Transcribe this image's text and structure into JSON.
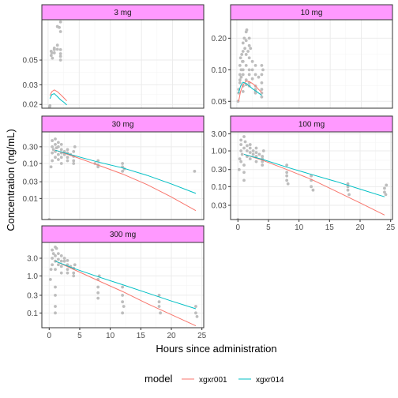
{
  "chart_data": {
    "type": "scatter",
    "x_label": "Hours since administration",
    "y_label": "Concentration (ng/mL)",
    "y_scale": "log",
    "legend": {
      "title": "model",
      "position": "bottom",
      "entries": [
        {
          "name": "xgxr001",
          "color": "#F8766D"
        },
        {
          "name": "xgxr014",
          "color": "#00BFC4"
        }
      ]
    },
    "colors": {
      "strip_fill": "#FF99FF",
      "points": "#bdbdbd",
      "grid_major": "#ebebeb",
      "grid_minor": "#f5f5f5",
      "panel_border": "#333333"
    },
    "panels": [
      {
        "title": "3 mg",
        "xlim": [
          -1,
          25
        ],
        "ylim": [
          0.0185,
          0.115
        ],
        "x_ticks": [],
        "y_ticks": [
          0.02,
          0.03,
          0.05
        ],
        "y_tick_labels": [
          "0.02",
          "0.03",
          "0.05"
        ],
        "points": [
          [
            0.25,
            0.019
          ],
          [
            0.3,
            0.0195
          ],
          [
            0.5,
            0.055
          ],
          [
            0.5,
            0.06
          ],
          [
            0.6,
            0.058
          ],
          [
            0.7,
            0.052
          ],
          [
            1,
            0.062
          ],
          [
            1,
            0.058
          ],
          [
            1,
            0.063
          ],
          [
            1.5,
            0.0625
          ],
          [
            2,
            0.062
          ],
          [
            2,
            0.057
          ],
          [
            2,
            0.054
          ],
          [
            2,
            0.05
          ],
          [
            1.5,
            0.068
          ],
          [
            2,
            0.09
          ],
          [
            1.8,
            0.098
          ],
          [
            2,
            0.11
          ],
          [
            1.5,
            0.1
          ],
          [
            1,
            0.064
          ]
        ],
        "series": [
          {
            "name": "xgxr001",
            "x": [
              0.3,
              0.6,
              1,
              1.5,
              2,
              2.5,
              3
            ],
            "y": [
              0.024,
              0.026,
              0.027,
              0.026,
              0.0245,
              0.023,
              0.0215
            ]
          },
          {
            "name": "xgxr014",
            "x": [
              0.3,
              0.6,
              1,
              1.5,
              2,
              2.5,
              3
            ],
            "y": [
              0.0225,
              0.0245,
              0.025,
              0.0235,
              0.022,
              0.021,
              0.0198
            ]
          }
        ]
      },
      {
        "title": "10 mg",
        "xlim": [
          -1,
          25
        ],
        "ylim": [
          0.043,
          0.3
        ],
        "x_ticks": [],
        "y_ticks": [
          0.05,
          0.1,
          0.2
        ],
        "y_tick_labels": [
          "0.05",
          "0.10",
          "0.20"
        ],
        "points": [
          [
            0.2,
            0.05
          ],
          [
            0.3,
            0.065
          ],
          [
            0.3,
            0.06
          ],
          [
            0.5,
            0.075
          ],
          [
            0.5,
            0.08
          ],
          [
            0.5,
            0.09
          ],
          [
            0.5,
            0.11
          ],
          [
            0.6,
            0.13
          ],
          [
            0.7,
            0.1
          ],
          [
            0.7,
            0.085
          ],
          [
            0.8,
            0.14
          ],
          [
            0.9,
            0.12
          ],
          [
            1,
            0.15
          ],
          [
            1,
            0.18
          ],
          [
            1,
            0.12
          ],
          [
            1,
            0.1
          ],
          [
            1,
            0.09
          ],
          [
            1,
            0.07
          ],
          [
            1,
            0.062
          ],
          [
            1.2,
            0.2
          ],
          [
            1.3,
            0.16
          ],
          [
            1.5,
            0.23
          ],
          [
            1.5,
            0.19
          ],
          [
            1.5,
            0.14
          ],
          [
            1.5,
            0.11
          ],
          [
            1.5,
            0.08
          ],
          [
            1.5,
            0.072
          ],
          [
            1.6,
            0.24
          ],
          [
            1.8,
            0.15
          ],
          [
            2,
            0.2
          ],
          [
            2,
            0.17
          ],
          [
            2,
            0.13
          ],
          [
            2,
            0.1
          ],
          [
            2,
            0.09
          ],
          [
            2,
            0.075
          ],
          [
            2,
            0.07
          ],
          [
            2.2,
            0.16
          ],
          [
            2.5,
            0.12
          ],
          [
            2.5,
            0.1
          ],
          [
            2.5,
            0.082
          ],
          [
            3,
            0.11
          ],
          [
            3,
            0.09
          ],
          [
            3,
            0.07
          ],
          [
            3,
            0.065
          ],
          [
            3,
            0.062
          ],
          [
            3,
            0.06
          ],
          [
            3.5,
            0.085
          ],
          [
            4,
            0.11
          ],
          [
            4,
            0.09
          ],
          [
            4,
            0.075
          ],
          [
            4,
            0.065
          ],
          [
            4,
            0.06
          ],
          [
            4,
            0.055
          ],
          [
            4.2,
            0.1
          ]
        ],
        "series": [
          {
            "name": "xgxr001",
            "x": [
              0.3,
              0.6,
              1,
              1.5,
              2,
              2.5,
              3,
              3.5,
              4
            ],
            "y": [
              0.05,
              0.062,
              0.072,
              0.078,
              0.077,
              0.074,
              0.07,
              0.065,
              0.061
            ]
          },
          {
            "name": "xgxr014",
            "x": [
              0.3,
              0.6,
              1,
              1.5,
              2,
              2.5,
              3,
              3.5,
              4
            ],
            "y": [
              0.06,
              0.07,
              0.076,
              0.074,
              0.07,
              0.066,
              0.063,
              0.06,
              0.057
            ]
          }
        ]
      },
      {
        "title": "30 mg",
        "xlim": [
          -1.2,
          25.3
        ],
        "ylim": [
          0.0025,
          0.8
        ],
        "x_ticks": [],
        "y_ticks": [
          0.01,
          0.03,
          0.1,
          0.3
        ],
        "y_tick_labels": [
          "0.01",
          "0.03",
          "0.10",
          "0.30"
        ],
        "points": [
          [
            0,
            0.0025
          ],
          [
            0.3,
            0.08
          ],
          [
            0.5,
            0.12
          ],
          [
            0.5,
            0.2
          ],
          [
            0.5,
            0.3
          ],
          [
            0.5,
            0.45
          ],
          [
            0.7,
            0.25
          ],
          [
            1,
            0.15
          ],
          [
            1,
            0.35
          ],
          [
            1,
            0.5
          ],
          [
            1,
            0.22
          ],
          [
            1.2,
            0.28
          ],
          [
            1.5,
            0.18
          ],
          [
            1.5,
            0.4
          ],
          [
            1.5,
            0.3
          ],
          [
            1.5,
            0.13
          ],
          [
            2,
            0.2
          ],
          [
            2,
            0.25
          ],
          [
            2,
            0.35
          ],
          [
            2,
            0.15
          ],
          [
            2,
            0.1
          ],
          [
            2.5,
            0.22
          ],
          [
            2.5,
            0.18
          ],
          [
            3,
            0.2
          ],
          [
            3,
            0.25
          ],
          [
            3,
            0.15
          ],
          [
            3,
            0.12
          ],
          [
            3.5,
            0.18
          ],
          [
            4,
            0.22
          ],
          [
            4,
            0.16
          ],
          [
            4,
            0.12
          ],
          [
            4,
            0.1
          ],
          [
            4.2,
            0.3
          ],
          [
            7.5,
            0.1
          ],
          [
            8,
            0.12
          ],
          [
            8,
            0.09
          ],
          [
            8,
            0.08
          ],
          [
            12,
            0.08
          ],
          [
            12,
            0.06
          ],
          [
            12.3,
            0.07
          ],
          [
            12,
            0.1
          ],
          [
            23.8,
            0.06
          ]
        ],
        "series": [
          {
            "name": "xgxr001",
            "x": [
              1,
              4,
              8,
              12,
              16,
              20,
              24
            ],
            "y": [
              0.24,
              0.16,
              0.09,
              0.05,
              0.025,
              0.011,
              0.0045
            ]
          },
          {
            "name": "xgxr014",
            "x": [
              1,
              4,
              8,
              12,
              16,
              20,
              24
            ],
            "y": [
              0.24,
              0.17,
              0.11,
              0.075,
              0.046,
              0.026,
              0.014
            ]
          }
        ]
      },
      {
        "title": "100 mg",
        "xlim": [
          -1.2,
          25.3
        ],
        "ylim": [
          0.012,
          3.4
        ],
        "x_ticks": [
          0,
          5,
          10,
          15,
          20,
          25
        ],
        "y_ticks": [
          0.03,
          0.1,
          0.3,
          1.0,
          3.0
        ],
        "y_tick_labels": [
          "0.03",
          "0.10",
          "0.30",
          "1.00",
          "3.00"
        ],
        "points": [
          [
            0,
            0.012
          ],
          [
            0.2,
            0.3
          ],
          [
            0.3,
            0.6
          ],
          [
            0.5,
            1
          ],
          [
            0.5,
            1.5
          ],
          [
            0.5,
            2
          ],
          [
            0.5,
            0.5
          ],
          [
            0.7,
            0.8
          ],
          [
            1,
            1.2
          ],
          [
            1,
            2.5
          ],
          [
            1,
            0.4
          ],
          [
            1,
            0.25
          ],
          [
            1,
            0.15
          ],
          [
            1.2,
            1.8
          ],
          [
            1.5,
            1
          ],
          [
            1.5,
            1.4
          ],
          [
            1.5,
            0.7
          ],
          [
            2,
            1.5
          ],
          [
            2,
            1.2
          ],
          [
            2,
            0.9
          ],
          [
            2,
            0.6
          ],
          [
            2.5,
            1
          ],
          [
            2.5,
            0.8
          ],
          [
            3,
            0.9
          ],
          [
            3,
            0.7
          ],
          [
            3,
            0.5
          ],
          [
            3,
            1.2
          ],
          [
            3.5,
            0.8
          ],
          [
            4,
            0.7
          ],
          [
            4,
            0.6
          ],
          [
            4,
            0.5
          ],
          [
            4,
            0.4
          ],
          [
            4.2,
            1
          ],
          [
            8,
            0.4
          ],
          [
            8,
            0.25
          ],
          [
            8,
            0.2
          ],
          [
            8,
            0.15
          ],
          [
            8.2,
            0.12
          ],
          [
            12,
            0.2
          ],
          [
            12,
            0.15
          ],
          [
            12,
            0.1
          ],
          [
            12.3,
            0.08
          ],
          [
            18,
            0.12
          ],
          [
            18,
            0.1
          ],
          [
            18,
            0.08
          ],
          [
            18.2,
            0.06
          ],
          [
            24,
            0.09
          ],
          [
            24,
            0.07
          ],
          [
            24.2,
            0.06
          ],
          [
            24.3,
            0.11
          ]
        ],
        "series": [
          {
            "name": "xgxr001",
            "x": [
              1,
              4,
              8,
              12,
              16,
              20,
              24
            ],
            "y": [
              0.8,
              0.55,
              0.3,
              0.16,
              0.075,
              0.035,
              0.016
            ]
          },
          {
            "name": "xgxr014",
            "x": [
              1,
              4,
              8,
              12,
              16,
              20,
              24
            ],
            "y": [
              0.8,
              0.58,
              0.35,
              0.22,
              0.14,
              0.085,
              0.052
            ]
          }
        ]
      },
      {
        "title": "300 mg",
        "xlim": [
          -1.2,
          25.3
        ],
        "ylim": [
          0.04,
          8.0
        ],
        "x_ticks": [
          0,
          5,
          10,
          15,
          20,
          25
        ],
        "y_ticks": [
          0.1,
          0.3,
          1.0,
          3.0
        ],
        "y_tick_labels": [
          "0.1",
          "0.3",
          "1.0",
          "3.0"
        ],
        "points": [
          [
            0.2,
            0.8
          ],
          [
            0.3,
            1.5
          ],
          [
            0.5,
            3
          ],
          [
            0.5,
            5
          ],
          [
            0.5,
            2
          ],
          [
            0.7,
            4
          ],
          [
            1,
            6
          ],
          [
            1,
            3.5
          ],
          [
            1,
            2.5
          ],
          [
            1,
            1.5
          ],
          [
            1,
            0.5
          ],
          [
            1,
            0.3
          ],
          [
            1,
            0.15
          ],
          [
            1,
            0.1
          ],
          [
            1.2,
            5.5
          ],
          [
            1.5,
            4
          ],
          [
            1.5,
            2.8
          ],
          [
            1.5,
            2
          ],
          [
            2,
            3.5
          ],
          [
            2,
            2.5
          ],
          [
            2,
            1.8
          ],
          [
            2,
            1.2
          ],
          [
            2.5,
            2.5
          ],
          [
            2.5,
            3
          ],
          [
            3,
            2
          ],
          [
            3,
            1.5
          ],
          [
            3,
            1.2
          ],
          [
            3,
            2.6
          ],
          [
            3.5,
            1.8
          ],
          [
            4,
            1.6
          ],
          [
            4,
            1.2
          ],
          [
            4,
            1
          ],
          [
            4.2,
            2
          ],
          [
            8,
            0.8
          ],
          [
            8,
            0.5
          ],
          [
            8,
            0.35
          ],
          [
            8,
            0.25
          ],
          [
            8.2,
            1
          ],
          [
            12,
            0.5
          ],
          [
            12,
            0.3
          ],
          [
            12,
            0.2
          ],
          [
            12.2,
            0.15
          ],
          [
            12,
            0.1
          ],
          [
            18,
            0.3
          ],
          [
            18,
            0.2
          ],
          [
            18,
            0.15
          ],
          [
            18.2,
            0.1
          ],
          [
            24,
            0.15
          ],
          [
            24,
            0.1
          ],
          [
            24.2,
            0.08
          ]
        ],
        "series": [
          {
            "name": "xgxr001",
            "x": [
              1,
              4,
              8,
              12,
              16,
              20,
              24
            ],
            "y": [
              2.5,
              1.5,
              0.75,
              0.38,
              0.18,
              0.09,
              0.045
            ]
          },
          {
            "name": "xgxr014",
            "x": [
              1,
              4,
              8,
              12,
              16,
              20,
              24
            ],
            "y": [
              2.5,
              1.6,
              0.95,
              0.58,
              0.35,
              0.21,
              0.13
            ]
          }
        ]
      }
    ]
  }
}
